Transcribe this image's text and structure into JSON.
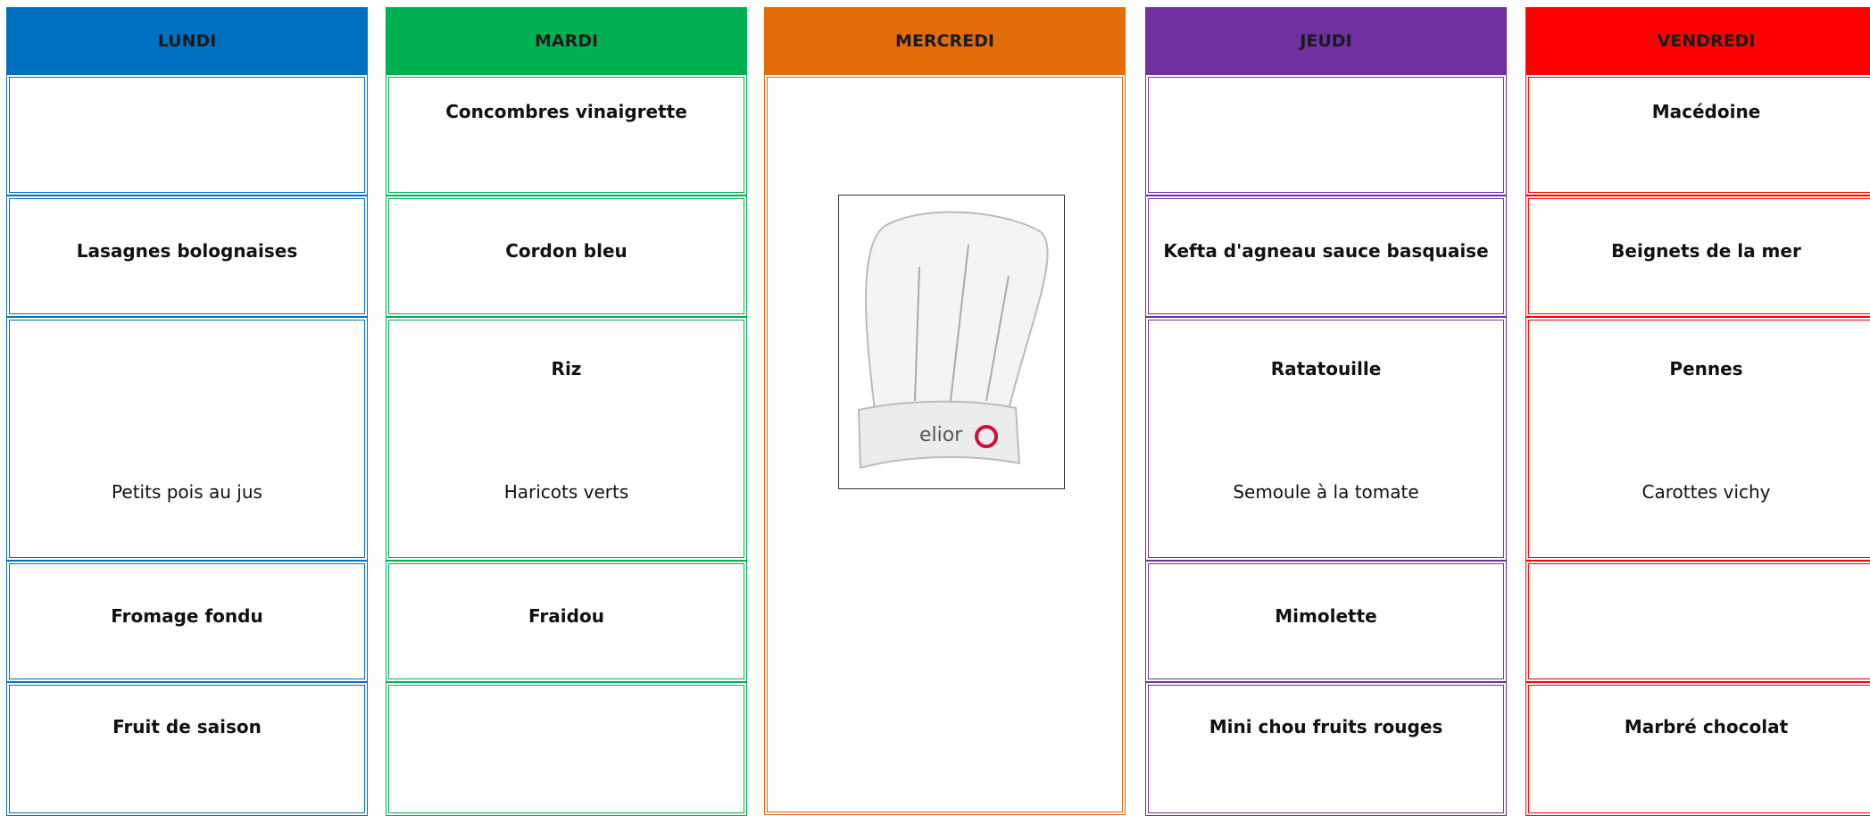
{
  "days": [
    {
      "name": "LUNDI",
      "color": "#0070c0",
      "starter": null,
      "main": "Lasagnes bolognaises",
      "side": null,
      "vegetable": "Petits pois au jus",
      "cheese": "Fromage fondu",
      "dessert": "Fruit de saison"
    },
    {
      "name": "MARDI",
      "color": "#00b050",
      "starter": "Concombres vinaigrette",
      "main": "Cordon bleu",
      "side": "Riz",
      "vegetable": "Haricots verts",
      "cheese": "Fraidou",
      "dessert": null
    },
    {
      "name": "MERCREDI",
      "color": "#e36c09",
      "logo": "elior"
    },
    {
      "name": "JEUDI",
      "color": "#7030a0",
      "starter": null,
      "main": "Kefta d'agneau sauce basquaise",
      "side": "Ratatouille",
      "vegetable": "Semoule à la tomate",
      "cheese": "Mimolette",
      "dessert": "Mini chou fruits rouges"
    },
    {
      "name": "VENDREDI",
      "color": "#ff0000",
      "starter": "Macédoine",
      "main": "Beignets de la mer",
      "side": "Pennes",
      "vegetable": "Carottes vichy",
      "cheese": null,
      "dessert": "Marbré chocolat"
    }
  ]
}
